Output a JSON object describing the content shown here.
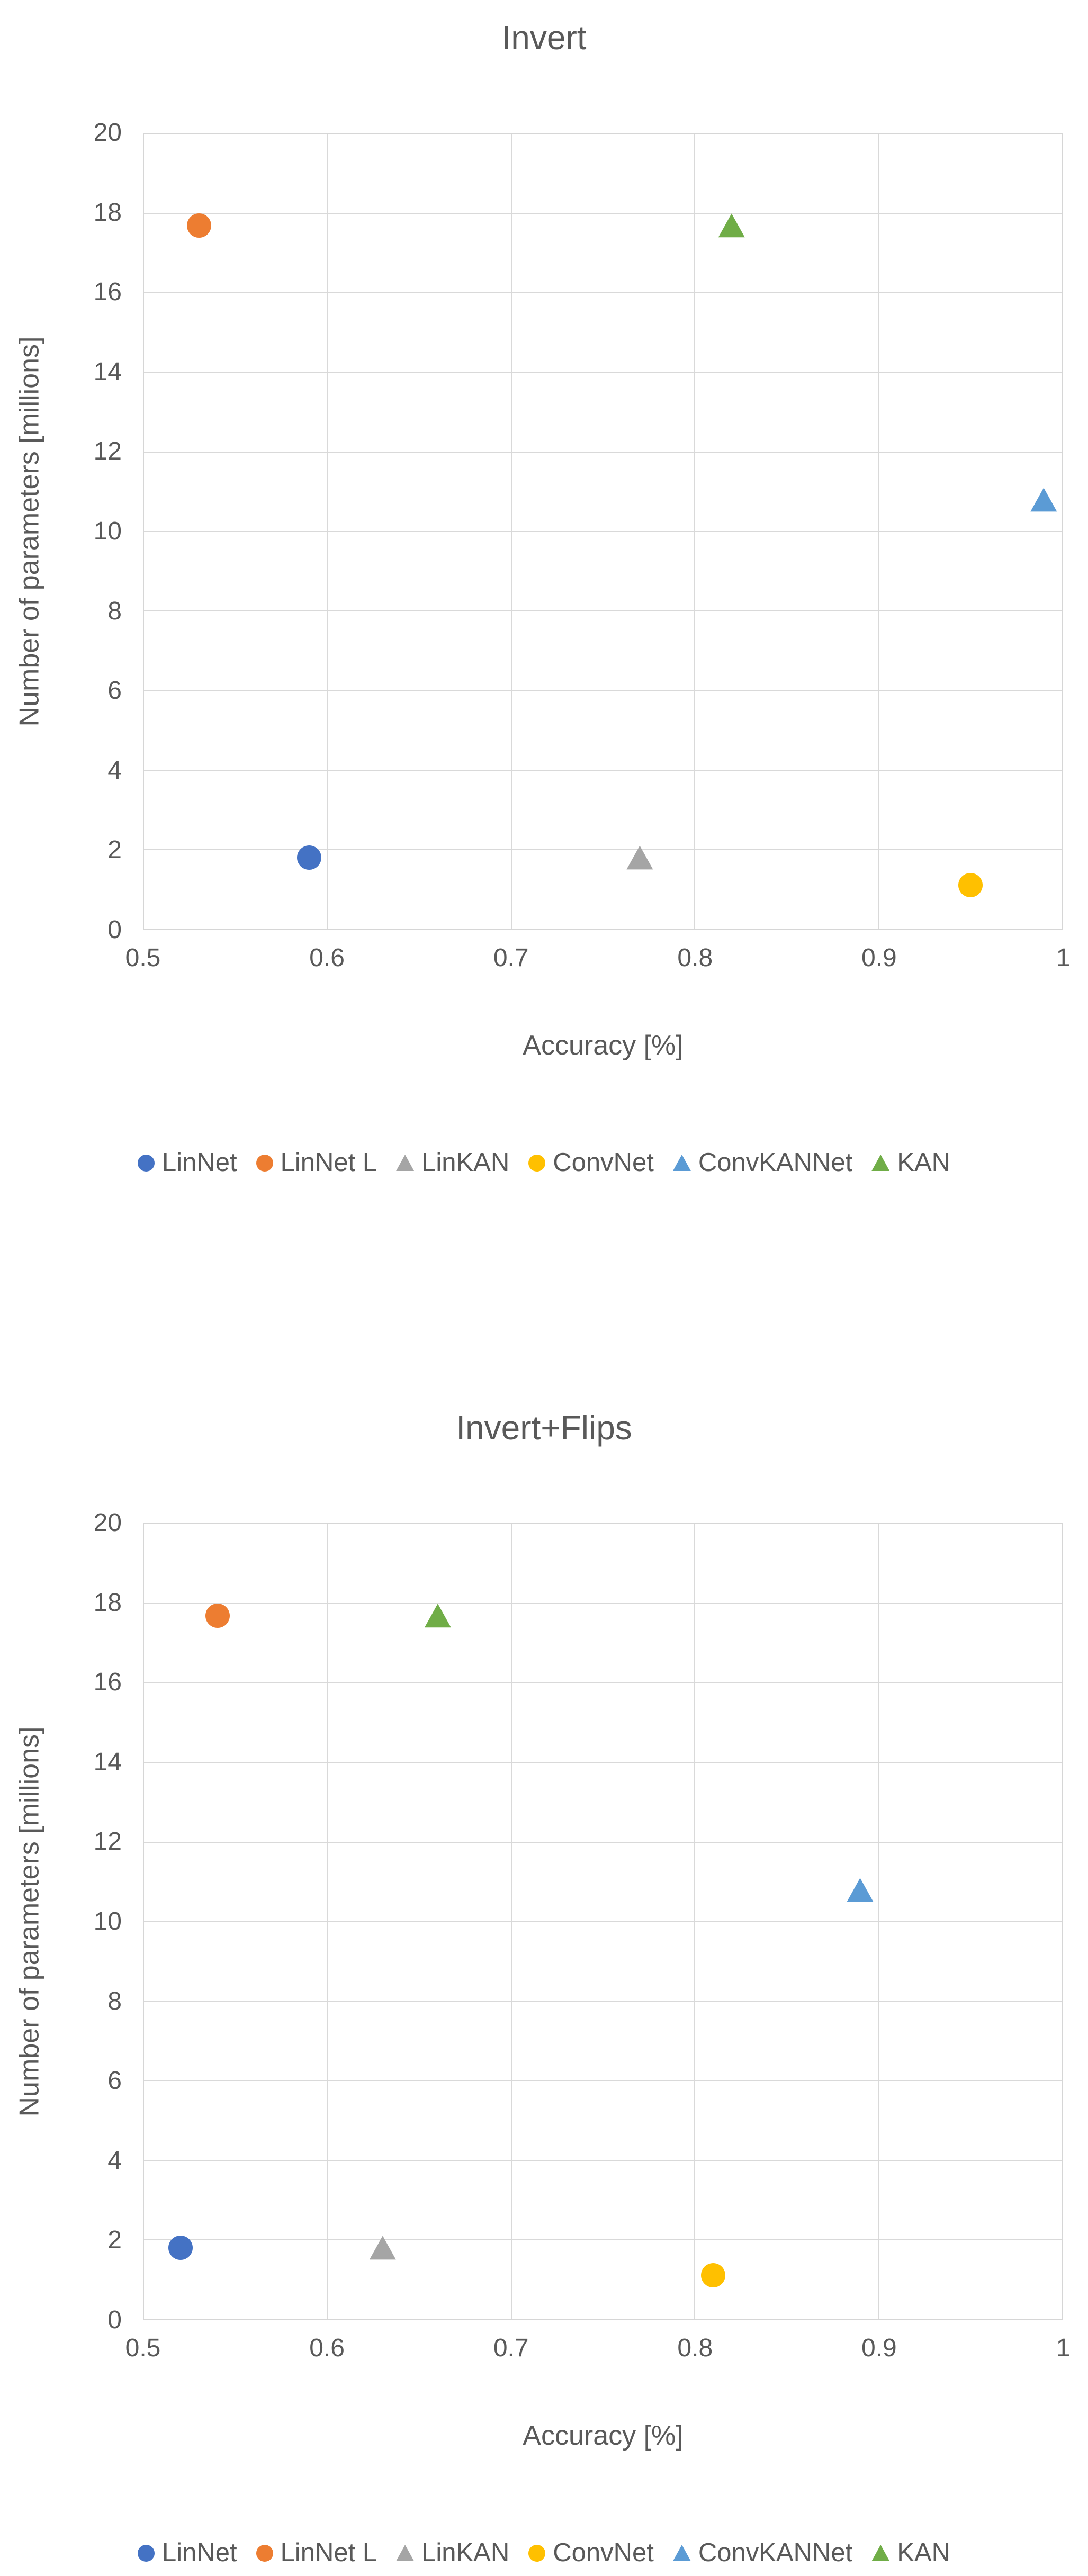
{
  "chart_data": [
    {
      "type": "scatter",
      "title": "Invert",
      "xlabel": "Accuracy [%]",
      "ylabel": "Number of parameters [millions]",
      "xlim": [
        0.5,
        1.0
      ],
      "ylim": [
        0,
        20
      ],
      "x_ticks": [
        "0.5",
        "0.6",
        "0.7",
        "0.8",
        "0.9",
        "1"
      ],
      "y_ticks": [
        "0",
        "2",
        "4",
        "6",
        "8",
        "10",
        "12",
        "14",
        "16",
        "18",
        "20"
      ],
      "grid": true,
      "legend_position": "bottom",
      "series": [
        {
          "name": "LinNet",
          "marker": "circle",
          "color": "#4472C4",
          "points": [
            [
              0.59,
              1.8
            ]
          ]
        },
        {
          "name": "LinNet L",
          "marker": "circle",
          "color": "#ED7D31",
          "points": [
            [
              0.53,
              17.7
            ]
          ]
        },
        {
          "name": "LinKAN",
          "marker": "triangle",
          "color": "#A5A5A5",
          "points": [
            [
              0.77,
              1.8
            ]
          ]
        },
        {
          "name": "ConvNet",
          "marker": "circle",
          "color": "#FFC000",
          "points": [
            [
              0.95,
              1.1
            ]
          ]
        },
        {
          "name": "ConvKANNet",
          "marker": "triangle",
          "color": "#5B9BD5",
          "points": [
            [
              0.99,
              10.8
            ]
          ]
        },
        {
          "name": "KAN",
          "marker": "triangle",
          "color": "#70AD47",
          "points": [
            [
              0.82,
              17.7
            ]
          ]
        }
      ]
    },
    {
      "type": "scatter",
      "title": "Invert+Flips",
      "xlabel": "Accuracy [%]",
      "ylabel": "Number of parameters [millions]",
      "xlim": [
        0.5,
        1.0
      ],
      "ylim": [
        0,
        20
      ],
      "x_ticks": [
        "0.5",
        "0.6",
        "0.7",
        "0.8",
        "0.9",
        "1"
      ],
      "y_ticks": [
        "0",
        "2",
        "4",
        "6",
        "8",
        "10",
        "12",
        "14",
        "16",
        "18",
        "20"
      ],
      "grid": true,
      "legend_position": "bottom",
      "series": [
        {
          "name": "LinNet",
          "marker": "circle",
          "color": "#4472C4",
          "points": [
            [
              0.52,
              1.8
            ]
          ]
        },
        {
          "name": "LinNet L",
          "marker": "circle",
          "color": "#ED7D31",
          "points": [
            [
              0.54,
              17.7
            ]
          ]
        },
        {
          "name": "LinKAN",
          "marker": "triangle",
          "color": "#A5A5A5",
          "points": [
            [
              0.63,
              1.8
            ]
          ]
        },
        {
          "name": "ConvNet",
          "marker": "circle",
          "color": "#FFC000",
          "points": [
            [
              0.81,
              1.1
            ]
          ]
        },
        {
          "name": "ConvKANNet",
          "marker": "triangle",
          "color": "#5B9BD5",
          "points": [
            [
              0.89,
              10.8
            ]
          ]
        },
        {
          "name": "KAN",
          "marker": "triangle",
          "color": "#70AD47",
          "points": [
            [
              0.66,
              17.7
            ]
          ]
        }
      ]
    }
  ]
}
